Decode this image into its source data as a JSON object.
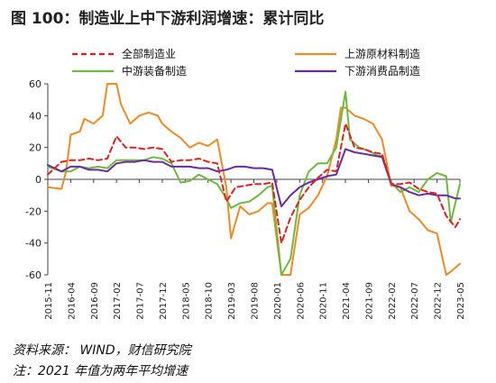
{
  "figure": {
    "title": "图 100：制造业上中下游利润增速：累计同比",
    "source": "资料来源： WIND，财信研究院",
    "note": "注：2021 年值为两年平均增速"
  },
  "chart_data": {
    "type": "line",
    "title": "",
    "xlabel": "",
    "ylabel": "",
    "ylim": [
      -60,
      60
    ],
    "yticks": [
      -60,
      -40,
      -20,
      0,
      20,
      40,
      60
    ],
    "xlim": [
      "2015-11",
      "2023-05"
    ],
    "xticks": [
      "2015-11",
      "2016-04",
      "2016-09",
      "2017-02",
      "2017-07",
      "2017-12",
      "2018-05",
      "2018-10",
      "2019-03",
      "2019-08",
      "2020-01",
      "2020-06",
      "2020-11",
      "2021-04",
      "2021-09",
      "2022-02",
      "2022-07",
      "2022-12",
      "2023-05"
    ],
    "grid": false,
    "legend": "top",
    "series": [
      {
        "name": "全部制造业",
        "color": "#e02020",
        "dash": true,
        "x": [
          "2015-11",
          "2016-02",
          "2016-04",
          "2016-06",
          "2016-08",
          "2016-10",
          "2016-12",
          "2017-02",
          "2017-04",
          "2017-06",
          "2017-08",
          "2017-10",
          "2017-12",
          "2018-02",
          "2018-04",
          "2018-06",
          "2018-08",
          "2018-10",
          "2018-12",
          "2019-02",
          "2019-04",
          "2019-06",
          "2019-08",
          "2019-10",
          "2019-12",
          "2020-02",
          "2020-04",
          "2020-06",
          "2020-08",
          "2020-10",
          "2020-12",
          "2021-02",
          "2021-04",
          "2021-06",
          "2021-08",
          "2021-10",
          "2021-12",
          "2022-02",
          "2022-04",
          "2022-06",
          "2022-08",
          "2022-10",
          "2022-12",
          "2023-02",
          "2023-04",
          "2023-05"
        ],
        "values": [
          3,
          11,
          12,
          12,
          13,
          12,
          13,
          27,
          20,
          20,
          19,
          20,
          19,
          11,
          12,
          12,
          13,
          11,
          10,
          -14,
          -5,
          -4,
          -3,
          -3,
          -2,
          -40,
          -24,
          -13,
          -5,
          1,
          6,
          5,
          35,
          20,
          19,
          17,
          16,
          -3,
          -3,
          -2,
          -6,
          -8,
          -9,
          -23,
          -30,
          -25
        ]
      },
      {
        "name": "上游原材料制造",
        "color": "#f08a24",
        "dash": false,
        "x": [
          "2015-11",
          "2016-02",
          "2016-03",
          "2016-04",
          "2016-06",
          "2016-07",
          "2016-09",
          "2016-11",
          "2016-12",
          "2017-01",
          "2017-02",
          "2017-03",
          "2017-05",
          "2017-07",
          "2017-09",
          "2017-11",
          "2017-12",
          "2018-02",
          "2018-04",
          "2018-06",
          "2018-08",
          "2018-10",
          "2018-12",
          "2019-02",
          "2019-03",
          "2019-05",
          "2019-07",
          "2019-09",
          "2019-11",
          "2019-12",
          "2020-02",
          "2020-04",
          "2020-06",
          "2020-08",
          "2020-10",
          "2020-12",
          "2021-02",
          "2021-03",
          "2021-04",
          "2021-06",
          "2021-08",
          "2021-10",
          "2021-12",
          "2022-02",
          "2022-04",
          "2022-06",
          "2022-08",
          "2022-10",
          "2022-12",
          "2023-02",
          "2023-03",
          "2023-05"
        ],
        "values": [
          -5,
          -6,
          5,
          28,
          30,
          38,
          35,
          40,
          65,
          60,
          65,
          47,
          35,
          40,
          42,
          40,
          35,
          30,
          26,
          20,
          23,
          21,
          25,
          -5,
          -37,
          -17,
          -22,
          -20,
          -15,
          -15,
          -60,
          -60,
          -22,
          -18,
          -10,
          2,
          25,
          45,
          45,
          40,
          38,
          35,
          25,
          -4,
          -5,
          -20,
          -25,
          -32,
          -34,
          -60,
          -58,
          -53
        ]
      },
      {
        "name": "中游装备制造",
        "color": "#6cba3c",
        "dash": false,
        "x": [
          "2015-11",
          "2016-02",
          "2016-04",
          "2016-06",
          "2016-08",
          "2016-10",
          "2016-12",
          "2017-02",
          "2017-04",
          "2017-06",
          "2017-08",
          "2017-10",
          "2017-12",
          "2018-02",
          "2018-04",
          "2018-06",
          "2018-08",
          "2018-10",
          "2018-12",
          "2019-02",
          "2019-03",
          "2019-05",
          "2019-07",
          "2019-09",
          "2019-11",
          "2019-12",
          "2020-02",
          "2020-04",
          "2020-06",
          "2020-08",
          "2020-10",
          "2020-12",
          "2021-02",
          "2021-04",
          "2021-05",
          "2021-07",
          "2021-09",
          "2021-11",
          "2021-12",
          "2022-02",
          "2022-04",
          "2022-06",
          "2022-08",
          "2022-10",
          "2022-12",
          "2023-02",
          "2023-03",
          "2023-05"
        ],
        "values": [
          8,
          5,
          5,
          8,
          7,
          8,
          7,
          12,
          12,
          12,
          12,
          14,
          13,
          10,
          -2,
          -1,
          3,
          0,
          -3,
          -12,
          -18,
          -15,
          -14,
          -10,
          -5,
          -4,
          -60,
          -50,
          -10,
          5,
          10,
          10,
          20,
          55,
          25,
          20,
          18,
          15,
          15,
          -2,
          -8,
          -5,
          -8,
          0,
          4,
          2,
          -27,
          -3
        ]
      },
      {
        "name": "下游消费品制造",
        "color": "#6a2aa0",
        "dash": false,
        "x": [
          "2015-11",
          "2016-02",
          "2016-04",
          "2016-06",
          "2016-08",
          "2016-10",
          "2016-12",
          "2017-02",
          "2017-04",
          "2017-06",
          "2017-08",
          "2017-10",
          "2017-12",
          "2018-02",
          "2018-04",
          "2018-06",
          "2018-08",
          "2018-10",
          "2018-12",
          "2019-02",
          "2019-04",
          "2019-06",
          "2019-08",
          "2019-10",
          "2019-12",
          "2020-02",
          "2020-04",
          "2020-06",
          "2020-08",
          "2020-10",
          "2020-12",
          "2021-02",
          "2021-04",
          "2021-06",
          "2021-08",
          "2021-10",
          "2021-12",
          "2022-02",
          "2022-04",
          "2022-06",
          "2022-08",
          "2022-10",
          "2022-12",
          "2023-02",
          "2023-04",
          "2023-05"
        ],
        "values": [
          9,
          5,
          8,
          8,
          6,
          6,
          5,
          10,
          11,
          11,
          12,
          11,
          11,
          8,
          8,
          8,
          7,
          7,
          5,
          6,
          8,
          8,
          7,
          7,
          6,
          -17,
          -10,
          -5,
          -2,
          0,
          2,
          3,
          19,
          17,
          16,
          15,
          14,
          -3,
          -5,
          -8,
          -10,
          -9,
          -10,
          -10,
          -12,
          -12
        ]
      }
    ]
  }
}
